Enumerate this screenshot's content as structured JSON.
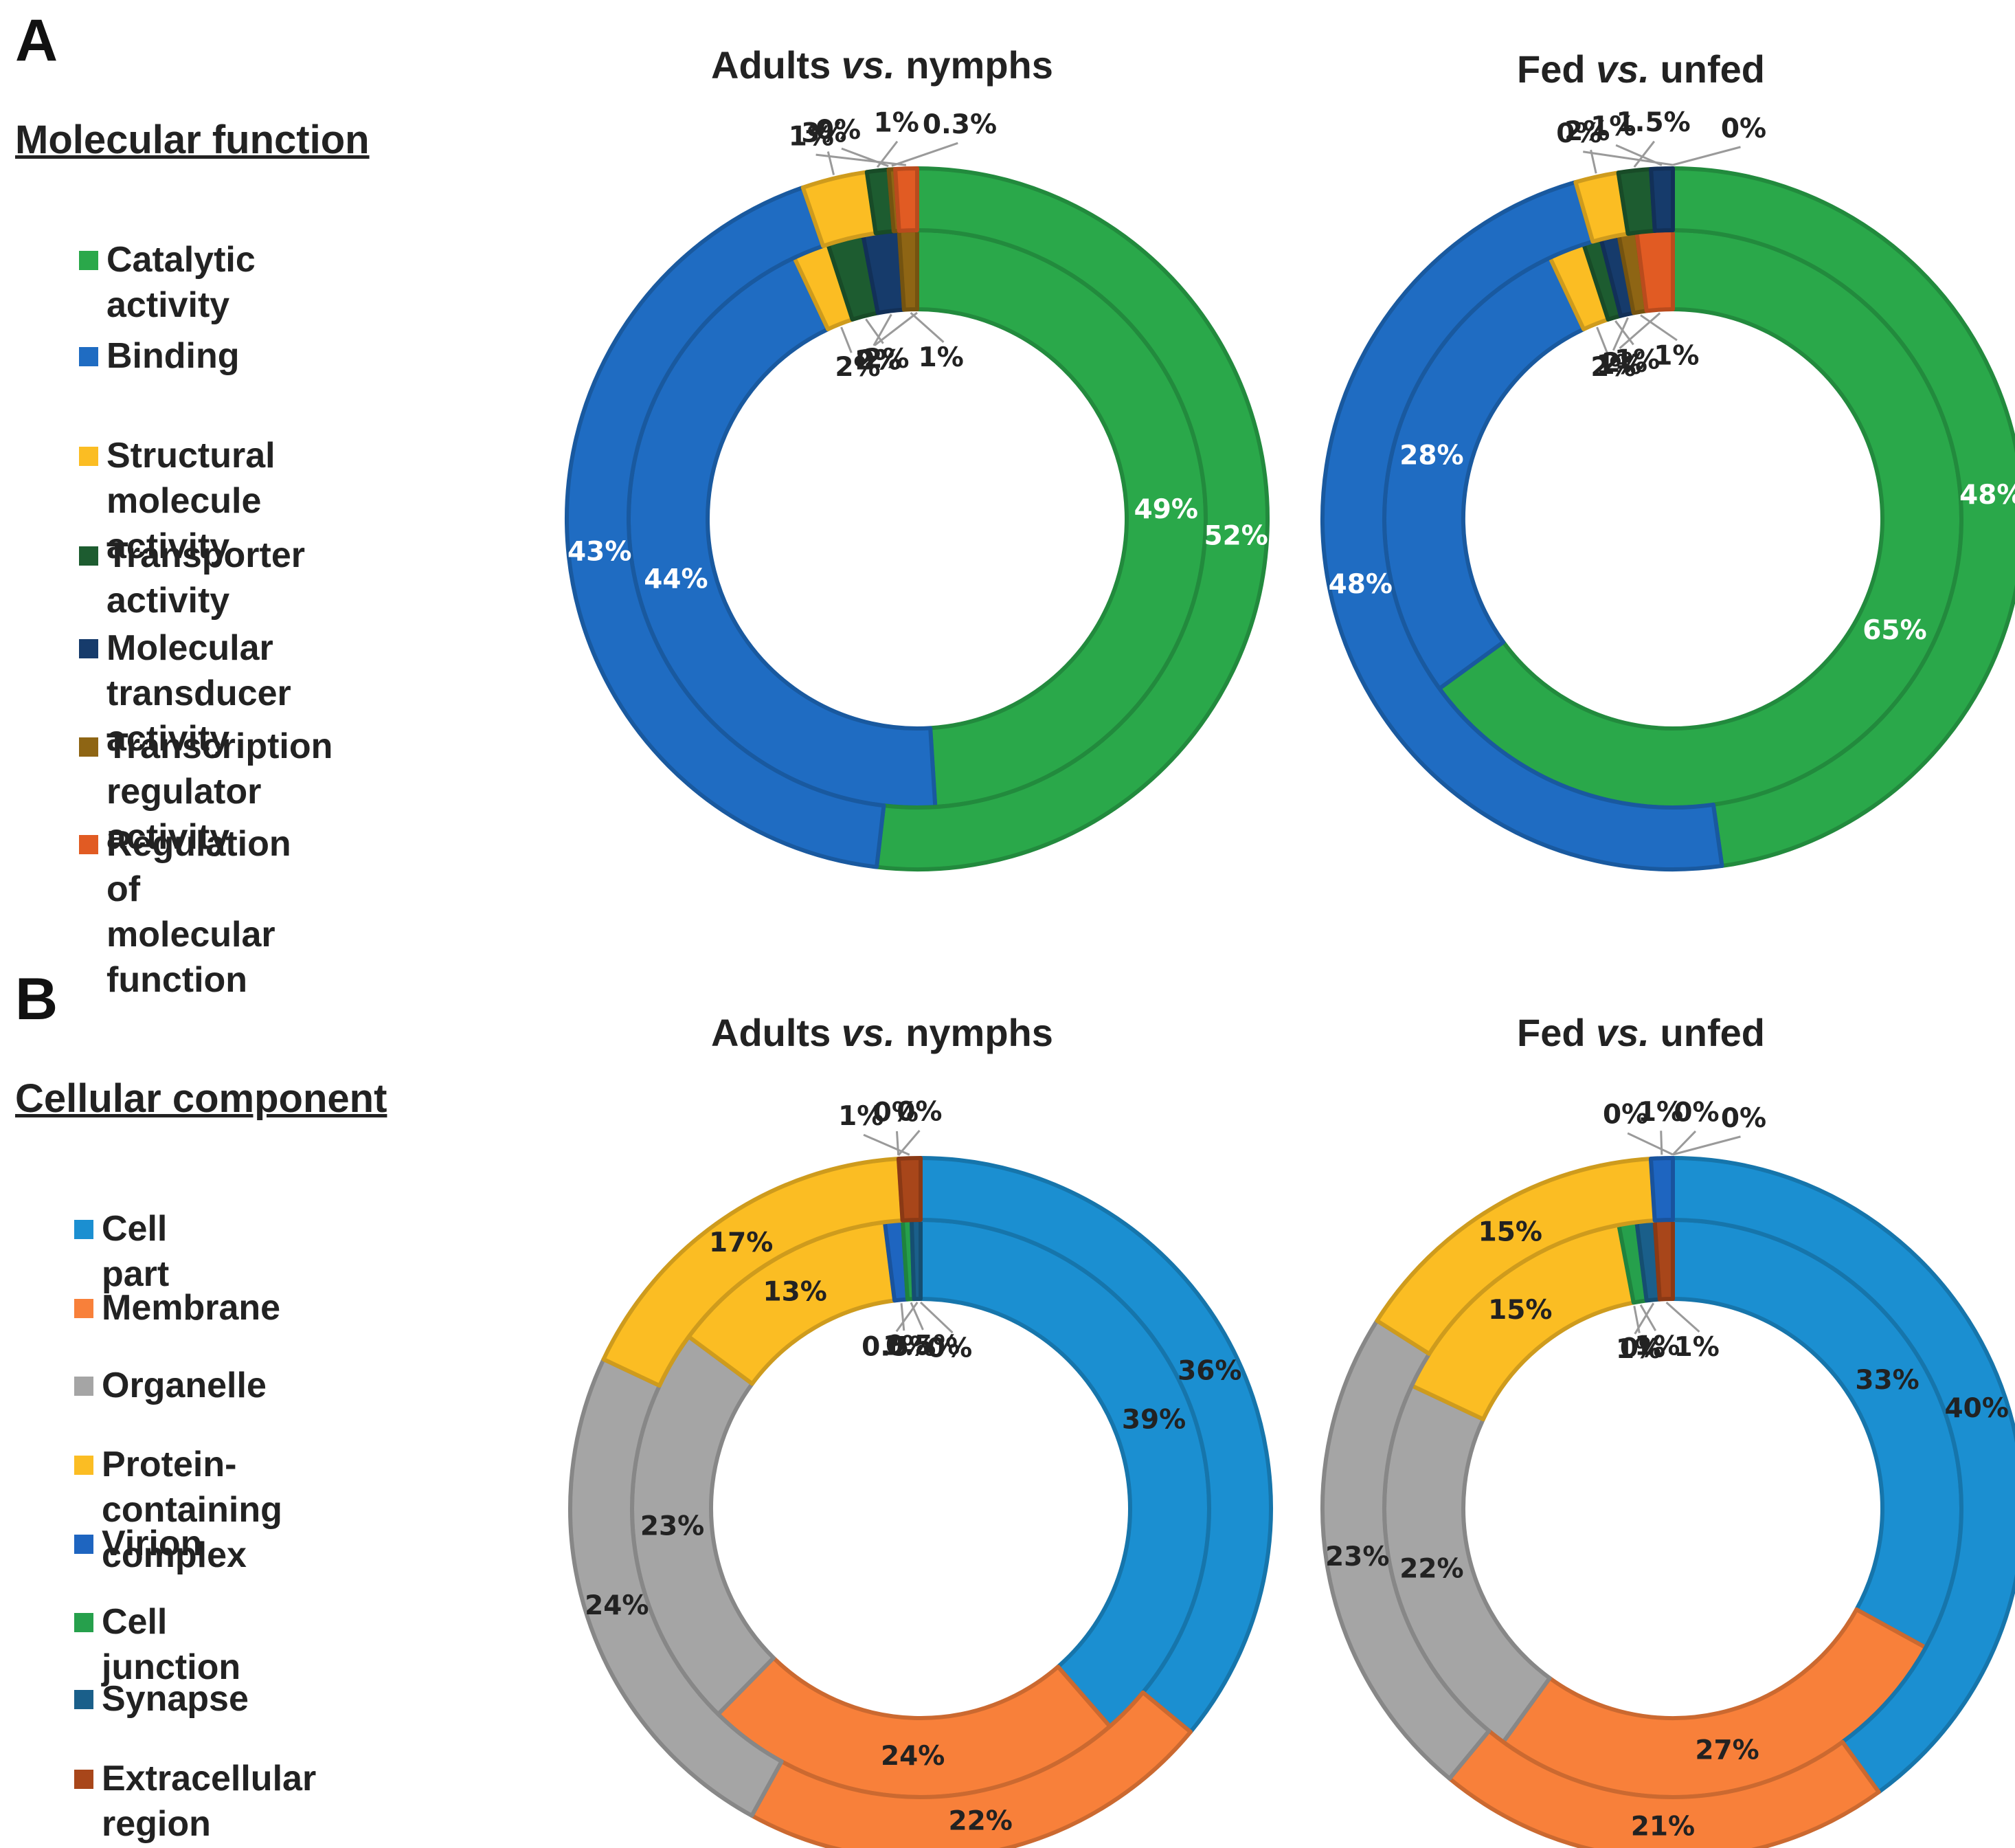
{
  "panels": [
    {
      "letter": "A",
      "section_title": "Molecular function",
      "legend": [
        {
          "lines": [
            "Catalytic activity"
          ],
          "color": "#2aa84a"
        },
        {
          "lines": [
            "Binding"
          ],
          "color": "#1f6cc2"
        },
        {
          "lines": [
            "Structural molecule",
            "activity"
          ],
          "color": "#fbbd23"
        },
        {
          "lines": [
            "Transporter activity"
          ],
          "color": "#1d5c30"
        },
        {
          "lines": [
            "Molecular transducer",
            "activity"
          ],
          "color": "#163b6b"
        },
        {
          "lines": [
            "Transcription",
            "regulator activity"
          ],
          "color": "#8e6514"
        },
        {
          "lines": [
            "Regulation of",
            "molecular function"
          ],
          "color": "#e15b23"
        }
      ]
    },
    {
      "letter": "B",
      "section_title": "Cellular component",
      "legend": [
        {
          "lines": [
            "Cell part"
          ],
          "color": "#1b8fd1"
        },
        {
          "lines": [
            "Membrane"
          ],
          "color": "#f8803a"
        },
        {
          "lines": [
            "Organelle"
          ],
          "color": "#a5a5a5"
        },
        {
          "lines": [
            "Protein-containing",
            "complex"
          ],
          "color": "#fbbd23"
        },
        {
          "lines": [
            "Virion"
          ],
          "color": "#1e65c0"
        },
        {
          "lines": [
            "Cell junction"
          ],
          "color": "#26a04c"
        },
        {
          "lines": [
            "Synapse"
          ],
          "color": "#1a5f8a"
        },
        {
          "lines": [
            "Extracellular region"
          ],
          "color": "#a8461a"
        }
      ]
    }
  ],
  "chart_data": [
    {
      "type": "donut",
      "panel": "A",
      "title": {
        "pre": "Adults",
        "em": "vs.",
        "post": "nymphs"
      },
      "categories": [
        "Catalytic activity",
        "Binding",
        "Structural molecule activity",
        "Transporter activity",
        "Molecular transducer activity",
        "Transcription regulator activity",
        "Regulation of molecular function"
      ],
      "colors": [
        "#2aa84a",
        "#1f6cc2",
        "#fbbd23",
        "#1d5c30",
        "#163b6b",
        "#8e6514",
        "#e15b23"
      ],
      "series": [
        {
          "name": "inner",
          "values": [
            49,
            44,
            2,
            2,
            2,
            1,
            0
          ],
          "labels": [
            "49%",
            "44%",
            "2%",
            "2%",
            "2%",
            "1%",
            "0%"
          ]
        },
        {
          "name": "outer",
          "values": [
            52,
            43,
            3,
            1,
            0,
            0.3,
            1
          ],
          "labels": [
            "52%",
            "43%",
            "3%",
            "1%",
            "0%",
            "0.3%",
            "1%"
          ]
        }
      ]
    },
    {
      "type": "donut",
      "panel": "A",
      "title": {
        "pre": "Fed",
        "em": "vs.",
        "post": "unfed"
      },
      "categories": [
        "Catalytic activity",
        "Binding",
        "Structural molecule activity",
        "Transporter activity",
        "Molecular transducer activity",
        "Transcription regulator activity",
        "Regulation of molecular function"
      ],
      "colors": [
        "#2aa84a",
        "#1f6cc2",
        "#fbbd23",
        "#1d5c30",
        "#163b6b",
        "#8e6514",
        "#e15b23"
      ],
      "series": [
        {
          "name": "inner",
          "values": [
            65,
            28,
            2,
            1,
            1,
            1,
            2
          ],
          "labels": [
            "65%",
            "28%",
            "2%",
            "1%",
            "1%",
            "1%",
            "2%"
          ]
        },
        {
          "name": "outer",
          "values": [
            48,
            48,
            2,
            1.5,
            1,
            0,
            0
          ],
          "labels": [
            "48%",
            "48%",
            "2%",
            "1.5%",
            "1%",
            "0%",
            "0%"
          ]
        }
      ]
    },
    {
      "type": "donut",
      "panel": "B",
      "title": {
        "pre": "Adults",
        "em": "vs.",
        "post": "nymphs"
      },
      "categories": [
        "Cell part",
        "Membrane",
        "Organelle",
        "Protein-containing complex",
        "Virion",
        "Cell junction",
        "Synapse",
        "Extracellular region"
      ],
      "colors": [
        "#1b8fd1",
        "#f8803a",
        "#a5a5a5",
        "#fbbd23",
        "#1e65c0",
        "#26a04c",
        "#1a5f8a",
        "#a8461a"
      ],
      "series": [
        {
          "name": "inner",
          "values": [
            39,
            24,
            23,
            13,
            1,
            0.5,
            0.5,
            0
          ],
          "labels": [
            "39%",
            "24%",
            "23%",
            "13%",
            "1%",
            "0.5%",
            "0.5%",
            "0%"
          ]
        },
        {
          "name": "outer",
          "values": [
            36,
            22,
            24,
            17,
            0,
            0,
            0,
            1
          ],
          "labels": [
            "36%",
            "22%",
            "24%",
            "17%",
            "0%",
            "0%",
            "",
            "1%"
          ]
        }
      ]
    },
    {
      "type": "donut",
      "panel": "B",
      "title": {
        "pre": "Fed",
        "em": "vs.",
        "post": "unfed"
      },
      "categories": [
        "Cell part",
        "Membrane",
        "Organelle",
        "Protein-containing complex",
        "Virion",
        "Cell junction",
        "Synapse",
        "Extracellular region"
      ],
      "colors": [
        "#1b8fd1",
        "#f8803a",
        "#a5a5a5",
        "#fbbd23",
        "#1e65c0",
        "#26a04c",
        "#1a5f8a",
        "#a8461a"
      ],
      "series": [
        {
          "name": "inner",
          "values": [
            33,
            27,
            22,
            15,
            0,
            1,
            1,
            1
          ],
          "labels": [
            "33%",
            "27%",
            "22%",
            "15%",
            "0%",
            "1%",
            "1%",
            "1%"
          ]
        },
        {
          "name": "outer",
          "values": [
            40,
            21,
            23,
            15,
            1,
            0,
            0,
            0
          ],
          "labels": [
            "40%",
            "21%",
            "23%",
            "15%",
            "1%",
            "0%",
            "0%",
            "0%"
          ]
        }
      ]
    }
  ]
}
